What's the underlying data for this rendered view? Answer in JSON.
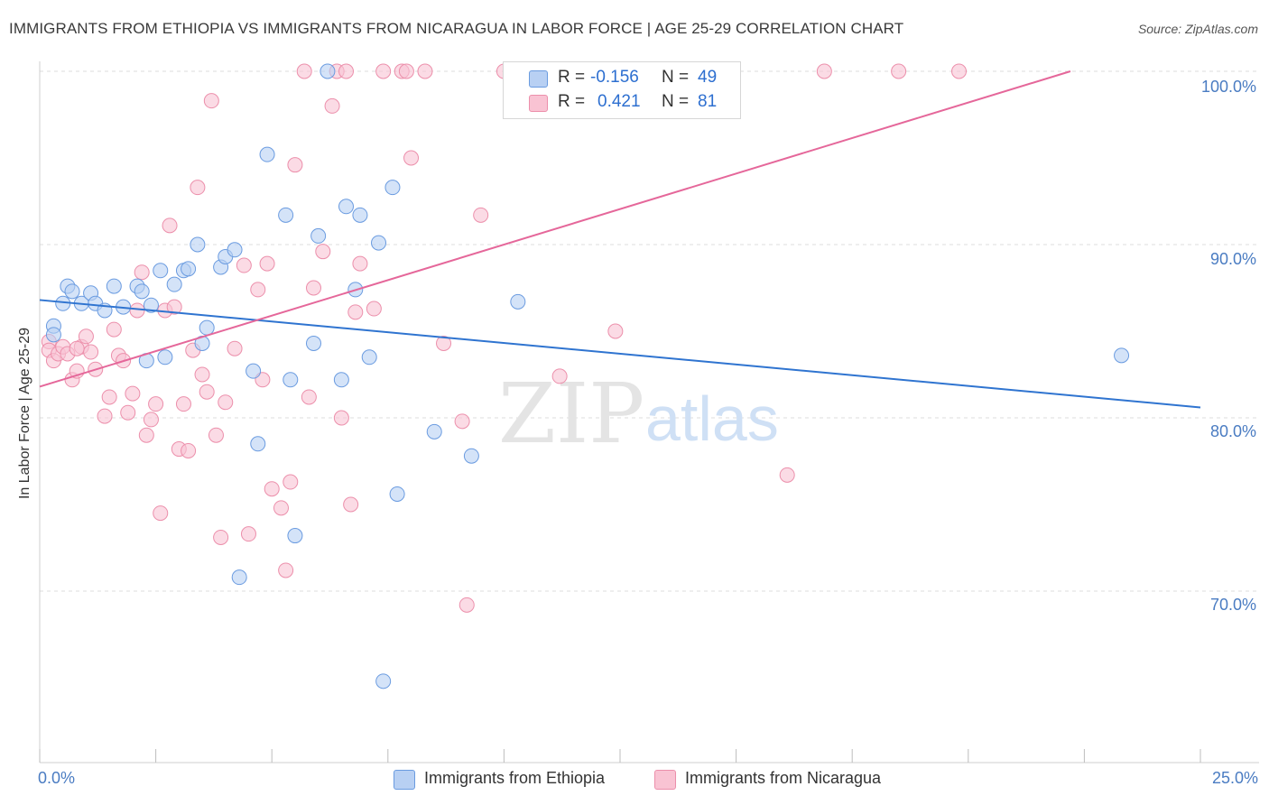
{
  "title": "IMMIGRANTS FROM ETHIOPIA VS IMMIGRANTS FROM NICARAGUA IN LABOR FORCE | AGE 25-29 CORRELATION CHART",
  "source": "Source: ZipAtlas.com",
  "watermark": {
    "zip": "ZIP",
    "atlas": "atlas"
  },
  "colors": {
    "ethiopia_fill": "#b8d0f3",
    "ethiopia_stroke": "#6a9be0",
    "ethiopia_line": "#2f74d0",
    "nicaragua_fill": "#f9c3d3",
    "nicaragua_stroke": "#ec8fab",
    "nicaragua_line": "#e5679a",
    "tick_text": "#4a7cc2",
    "grid": "#dcdcdc"
  },
  "legend": {
    "rows": [
      {
        "r_label": "R =",
        "r_value": "-0.156",
        "n_label": "N =",
        "n_value": "49"
      },
      {
        "r_label": "R =",
        "r_value": "0.421",
        "n_label": "N =",
        "n_value": "81"
      }
    ]
  },
  "chart_data": {
    "type": "scatter",
    "title": "IMMIGRANTS FROM ETHIOPIA VS IMMIGRANTS FROM NICARAGUA IN LABOR FORCE | AGE 25-29 CORRELATION CHART",
    "xlabel": "",
    "ylabel": "In Labor Force | Age 25-29",
    "xlim": [
      0,
      25
    ],
    "ylim": [
      60,
      101
    ],
    "x_tick_labels": [
      "0.0%",
      "25.0%"
    ],
    "y_ticks": [
      70,
      80,
      90,
      100
    ],
    "y_tick_labels": [
      "70.0%",
      "80.0%",
      "90.0%",
      "100.0%"
    ],
    "grid": true,
    "legend_position": "top-center",
    "series": [
      {
        "name": "Immigrants from Ethiopia",
        "r": -0.156,
        "n": 49,
        "trend": {
          "x0": 0,
          "y0": 86.8,
          "x1": 25,
          "y1": 80.6
        },
        "points": [
          [
            0.3,
            85.3
          ],
          [
            0.3,
            84.8
          ],
          [
            0.5,
            86.6
          ],
          [
            0.6,
            87.6
          ],
          [
            0.7,
            87.3
          ],
          [
            0.9,
            86.6
          ],
          [
            1.1,
            87.2
          ],
          [
            1.2,
            86.6
          ],
          [
            1.4,
            86.2
          ],
          [
            1.6,
            87.6
          ],
          [
            1.8,
            86.4
          ],
          [
            2.1,
            87.6
          ],
          [
            2.2,
            87.3
          ],
          [
            2.3,
            83.3
          ],
          [
            2.4,
            86.5
          ],
          [
            2.6,
            88.5
          ],
          [
            2.7,
            83.5
          ],
          [
            2.9,
            87.7
          ],
          [
            3.1,
            88.5
          ],
          [
            3.2,
            88.6
          ],
          [
            3.4,
            90.0
          ],
          [
            3.5,
            84.3
          ],
          [
            3.6,
            85.2
          ],
          [
            3.9,
            88.7
          ],
          [
            4.0,
            89.3
          ],
          [
            4.2,
            89.7
          ],
          [
            4.3,
            70.8
          ],
          [
            4.6,
            82.7
          ],
          [
            4.7,
            78.5
          ],
          [
            4.9,
            95.2
          ],
          [
            5.3,
            91.7
          ],
          [
            5.4,
            82.2
          ],
          [
            5.5,
            73.2
          ],
          [
            5.9,
            84.3
          ],
          [
            6.0,
            90.5
          ],
          [
            6.2,
            100.0
          ],
          [
            6.5,
            82.2
          ],
          [
            6.6,
            92.2
          ],
          [
            6.8,
            87.4
          ],
          [
            6.9,
            91.7
          ],
          [
            7.1,
            83.5
          ],
          [
            7.3,
            90.1
          ],
          [
            7.4,
            64.8
          ],
          [
            7.6,
            93.3
          ],
          [
            7.7,
            75.6
          ],
          [
            8.5,
            79.2
          ],
          [
            9.3,
            77.8
          ],
          [
            10.3,
            86.7
          ],
          [
            23.3,
            83.6
          ]
        ]
      },
      {
        "name": "Immigrants from Nicaragua",
        "r": 0.421,
        "n": 81,
        "trend": {
          "x0": 0,
          "y0": 81.8,
          "x1": 22.2,
          "y1": 100.0
        },
        "points": [
          [
            0.2,
            84.4
          ],
          [
            0.2,
            83.9
          ],
          [
            0.3,
            83.3
          ],
          [
            0.4,
            83.7
          ],
          [
            0.5,
            84.1
          ],
          [
            0.6,
            83.7
          ],
          [
            0.7,
            82.2
          ],
          [
            0.8,
            82.7
          ],
          [
            0.9,
            84.1
          ],
          [
            1.0,
            84.7
          ],
          [
            1.1,
            83.8
          ],
          [
            1.2,
            82.8
          ],
          [
            1.4,
            80.1
          ],
          [
            1.5,
            81.2
          ],
          [
            1.6,
            85.1
          ],
          [
            1.7,
            83.6
          ],
          [
            1.8,
            83.3
          ],
          [
            1.9,
            80.3
          ],
          [
            2.0,
            81.4
          ],
          [
            2.1,
            86.2
          ],
          [
            2.2,
            88.4
          ],
          [
            2.3,
            79.0
          ],
          [
            2.4,
            79.9
          ],
          [
            2.5,
            80.8
          ],
          [
            2.6,
            74.5
          ],
          [
            2.7,
            86.2
          ],
          [
            2.8,
            91.1
          ],
          [
            2.9,
            86.4
          ],
          [
            3.0,
            78.2
          ],
          [
            3.1,
            80.8
          ],
          [
            3.2,
            78.1
          ],
          [
            3.3,
            83.9
          ],
          [
            3.4,
            93.3
          ],
          [
            3.5,
            82.5
          ],
          [
            3.6,
            81.5
          ],
          [
            3.7,
            98.3
          ],
          [
            3.8,
            79.0
          ],
          [
            3.9,
            73.1
          ],
          [
            4.0,
            80.9
          ],
          [
            4.2,
            84.0
          ],
          [
            4.4,
            88.8
          ],
          [
            4.5,
            73.3
          ],
          [
            4.7,
            87.4
          ],
          [
            4.8,
            82.2
          ],
          [
            4.9,
            88.9
          ],
          [
            5.0,
            75.9
          ],
          [
            5.2,
            74.8
          ],
          [
            5.3,
            71.2
          ],
          [
            5.4,
            76.3
          ],
          [
            5.5,
            94.6
          ],
          [
            5.7,
            100.0
          ],
          [
            5.8,
            81.2
          ],
          [
            5.9,
            87.5
          ],
          [
            6.1,
            89.6
          ],
          [
            6.3,
            98.0
          ],
          [
            6.4,
            100.0
          ],
          [
            6.5,
            80.0
          ],
          [
            6.6,
            100.0
          ],
          [
            6.7,
            75.0
          ],
          [
            6.8,
            86.1
          ],
          [
            6.9,
            88.9
          ],
          [
            7.2,
            86.3
          ],
          [
            7.4,
            100.0
          ],
          [
            7.8,
            100.0
          ],
          [
            7.9,
            100.0
          ],
          [
            8.0,
            95.0
          ],
          [
            8.3,
            100.0
          ],
          [
            8.7,
            84.3
          ],
          [
            9.1,
            79.8
          ],
          [
            9.2,
            69.2
          ],
          [
            9.5,
            91.7
          ],
          [
            10.0,
            100.0
          ],
          [
            10.2,
            100.0
          ],
          [
            10.6,
            100.0
          ],
          [
            11.2,
            82.4
          ],
          [
            12.4,
            85.0
          ],
          [
            16.1,
            76.7
          ],
          [
            16.9,
            100.0
          ],
          [
            18.5,
            100.0
          ],
          [
            19.8,
            100.0
          ],
          [
            0.8,
            84.0
          ]
        ]
      }
    ]
  },
  "axis_labels": {
    "y": "In Labor Force | Age 25-29",
    "x_left": "0.0%",
    "x_right": "25.0%",
    "y_ticks": [
      "100.0%",
      "90.0%",
      "80.0%",
      "70.0%"
    ]
  },
  "bottom_legend": {
    "ethiopia": "Immigrants from Ethiopia",
    "nicaragua": "Immigrants from Nicaragua"
  }
}
